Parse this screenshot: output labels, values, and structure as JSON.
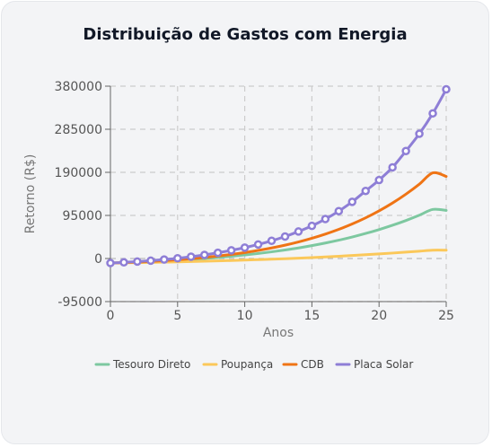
{
  "chart_data": {
    "type": "line",
    "title": "Distribuição de Gastos com Energia",
    "xlabel": "Anos",
    "ylabel": "Retorno (R$)",
    "xlim": [
      0,
      25
    ],
    "ylim": [
      -95000,
      380000
    ],
    "xticks": [
      0,
      5,
      10,
      15,
      20,
      25
    ],
    "yticks": [
      -95000,
      0,
      95000,
      190000,
      285000,
      380000
    ],
    "grid": true,
    "legend": "bottom",
    "x": [
      0,
      1,
      2,
      3,
      4,
      5,
      6,
      7,
      8,
      9,
      10,
      11,
      12,
      13,
      14,
      15,
      16,
      17,
      18,
      19,
      20,
      21,
      22,
      23,
      24,
      25
    ],
    "series": [
      {
        "name": "Tesouro Direto",
        "color": "#7dc8a0",
        "markers": false,
        "values": [
          -10000,
          -9200,
          -8000,
          -6800,
          -5400,
          -3800,
          -2000,
          0,
          2300,
          4900,
          7800,
          11000,
          14700,
          18800,
          23300,
          28400,
          34100,
          40400,
          47400,
          55200,
          63800,
          73300,
          83800,
          95400,
          108200,
          106000
        ]
      },
      {
        "name": "Poupança",
        "color": "#fbc85a",
        "markers": false,
        "values": [
          -10000,
          -9600,
          -9100,
          -8600,
          -8000,
          -7400,
          -6700,
          -6000,
          -5200,
          -4400,
          -3500,
          -2500,
          -1500,
          -400,
          800,
          2100,
          3500,
          5000,
          6600,
          8300,
          10100,
          12000,
          14000,
          16100,
          18300,
          18300
        ]
      },
      {
        "name": "CDB",
        "color": "#ef7415",
        "markers": false,
        "values": [
          -10000,
          -9000,
          -7800,
          -6400,
          -4700,
          -2700,
          -400,
          2300,
          5400,
          9000,
          13100,
          17800,
          23200,
          29400,
          36500,
          44600,
          53800,
          64300,
          76200,
          89700,
          105000,
          122300,
          141900,
          163900,
          188800,
          181000
        ]
      },
      {
        "name": "Placa Solar",
        "color": "#8e7ed6",
        "markers": true,
        "values": [
          -10000,
          -8500,
          -6800,
          -4800,
          -2300,
          500,
          4000,
          8000,
          12600,
          18000,
          24000,
          31000,
          39000,
          48500,
          59500,
          72000,
          87000,
          104500,
          125000,
          149000,
          173000,
          201000,
          237000,
          275000,
          320000,
          373000
        ]
      }
    ]
  }
}
